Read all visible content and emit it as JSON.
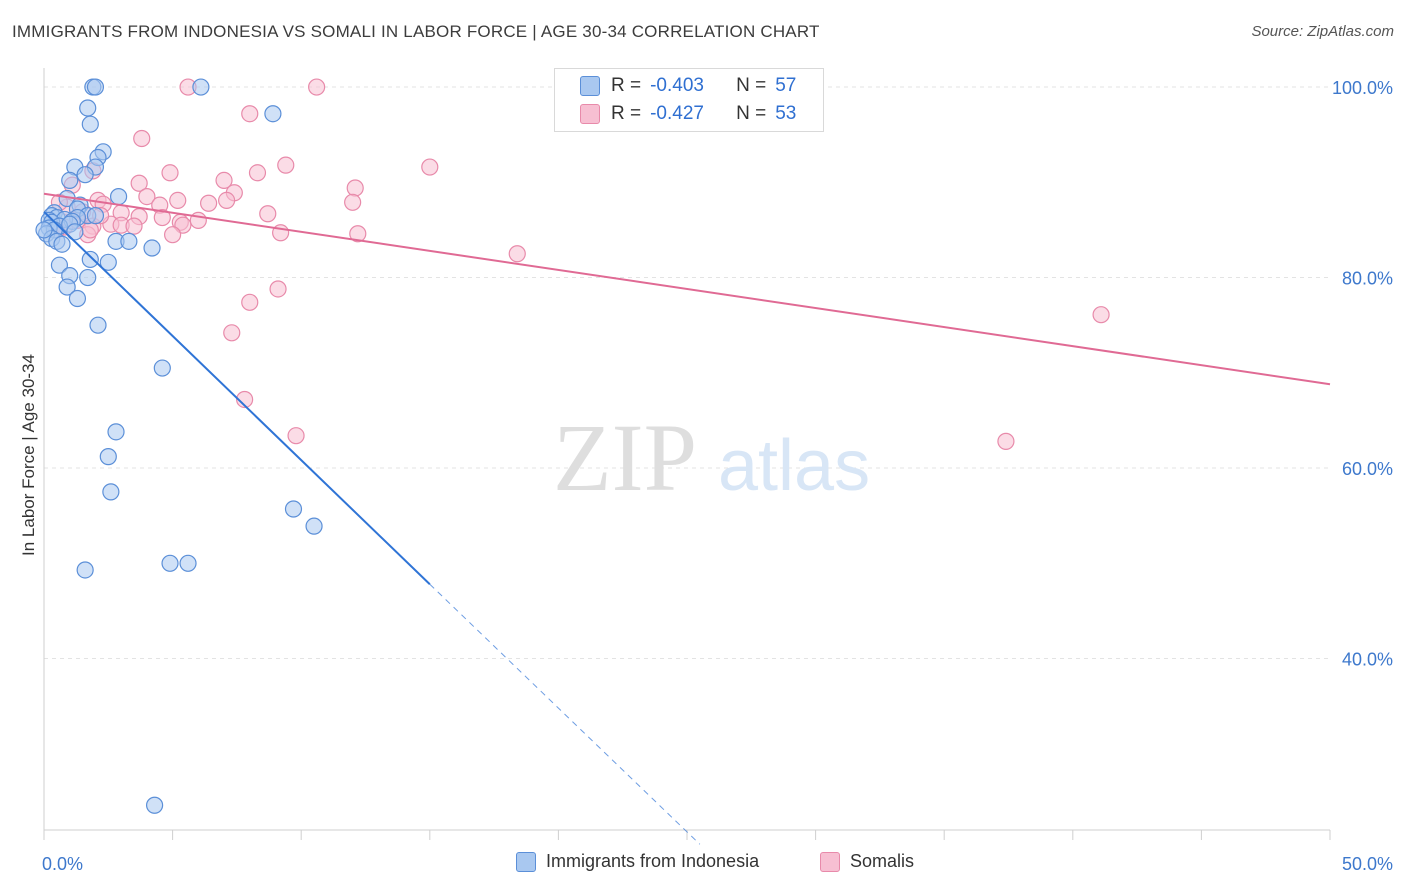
{
  "title": "IMMIGRANTS FROM INDONESIA VS SOMALI IN LABOR FORCE | AGE 30-34 CORRELATION CHART",
  "source": "Source: ZipAtlas.com",
  "watermark": {
    "zip": "ZIP",
    "atlas": "atlas"
  },
  "colors": {
    "indonesia_fill": "#a9c8f0",
    "indonesia_stroke": "#5b8fd8",
    "indonesia_line": "#2f74d6",
    "somali_fill": "#f7bfd2",
    "somali_stroke": "#e88aaa",
    "somali_line": "#e06a94",
    "tick_label": "#3d78cc",
    "grid": "#e3e3e3"
  },
  "stats": [
    {
      "r_label": "R =",
      "r_value": "-0.403",
      "n_label": "N =",
      "n_value": "57"
    },
    {
      "r_label": "R =",
      "r_value": "-0.427",
      "n_label": "N =",
      "n_value": "53"
    }
  ],
  "legend": [
    {
      "label": "Immigrants from Indonesia"
    },
    {
      "label": "Somalis"
    }
  ],
  "chart_data": {
    "type": "scatter",
    "title": "IMMIGRANTS FROM INDONESIA VS SOMALI IN LABOR FORCE | AGE 30-34 CORRELATION CHART",
    "xlabel": "",
    "ylabel": "In Labor Force | Age 30-34",
    "xlim": [
      0,
      50
    ],
    "ylim": [
      22,
      102
    ],
    "x_tick_labels": [
      {
        "value": 0,
        "label": "0.0%"
      },
      {
        "value": 50,
        "label": "50.0%"
      }
    ],
    "y_tick_labels": [
      {
        "value": 100,
        "label": "100.0%"
      },
      {
        "value": 80,
        "label": "80.0%"
      },
      {
        "value": 60,
        "label": "60.0%"
      },
      {
        "value": 40,
        "label": "40.0%"
      }
    ],
    "series": [
      {
        "name": "Immigrants from Indonesia",
        "points": [
          [
            1.9,
            100
          ],
          [
            2.0,
            100
          ],
          [
            6.1,
            100
          ],
          [
            1.7,
            97.8
          ],
          [
            8.9,
            97.2
          ],
          [
            1.8,
            96.1
          ],
          [
            2.3,
            93.2
          ],
          [
            2.1,
            92.6
          ],
          [
            2.0,
            91.6
          ],
          [
            1.2,
            91.6
          ],
          [
            1.6,
            90.8
          ],
          [
            1.0,
            90.2
          ],
          [
            2.9,
            88.5
          ],
          [
            0.9,
            88.3
          ],
          [
            1.4,
            87.6
          ],
          [
            1.3,
            87.2
          ],
          [
            0.4,
            86.8
          ],
          [
            0.3,
            86.5
          ],
          [
            0.5,
            86.3
          ],
          [
            1.7,
            86.5
          ],
          [
            1.3,
            86.3
          ],
          [
            2.0,
            86.5
          ],
          [
            0.8,
            86.1
          ],
          [
            1.1,
            85.9
          ],
          [
            0.2,
            86.0
          ],
          [
            0.3,
            85.8
          ],
          [
            0.6,
            85.4
          ],
          [
            1.0,
            85.6
          ],
          [
            0.2,
            85.2
          ],
          [
            0.4,
            85.0
          ],
          [
            1.2,
            84.8
          ],
          [
            0.1,
            84.6
          ],
          [
            0.3,
            84.1
          ],
          [
            0.5,
            83.8
          ],
          [
            0.7,
            83.5
          ],
          [
            2.8,
            83.8
          ],
          [
            3.3,
            83.8
          ],
          [
            4.2,
            83.1
          ],
          [
            1.8,
            81.9
          ],
          [
            2.5,
            81.6
          ],
          [
            0.6,
            81.3
          ],
          [
            1.0,
            80.2
          ],
          [
            1.7,
            80.0
          ],
          [
            0.9,
            79.0
          ],
          [
            1.3,
            77.8
          ],
          [
            2.1,
            75.0
          ],
          [
            4.6,
            70.5
          ],
          [
            2.8,
            63.8
          ],
          [
            2.5,
            61.2
          ],
          [
            2.6,
            57.5
          ],
          [
            9.7,
            55.7
          ],
          [
            10.5,
            53.9
          ],
          [
            4.9,
            50.0
          ],
          [
            5.6,
            50.0
          ],
          [
            1.6,
            49.3
          ],
          [
            4.3,
            24.6
          ],
          [
            0.0,
            85.0
          ]
        ]
      },
      {
        "name": "Somalis",
        "points": [
          [
            5.6,
            100
          ],
          [
            10.6,
            100
          ],
          [
            8.0,
            97.2
          ],
          [
            3.8,
            94.6
          ],
          [
            9.4,
            91.8
          ],
          [
            1.9,
            91.2
          ],
          [
            4.9,
            91.0
          ],
          [
            15.0,
            91.6
          ],
          [
            7.0,
            90.2
          ],
          [
            8.3,
            91.0
          ],
          [
            3.7,
            89.9
          ],
          [
            12.1,
            89.4
          ],
          [
            1.1,
            89.7
          ],
          [
            7.4,
            88.9
          ],
          [
            4.0,
            88.5
          ],
          [
            5.2,
            88.1
          ],
          [
            7.1,
            88.1
          ],
          [
            2.1,
            88.1
          ],
          [
            12.0,
            87.9
          ],
          [
            6.4,
            87.8
          ],
          [
            4.5,
            87.6
          ],
          [
            0.9,
            87.4
          ],
          [
            2.3,
            87.7
          ],
          [
            1.5,
            86.9
          ],
          [
            3.0,
            86.8
          ],
          [
            3.7,
            86.4
          ],
          [
            8.7,
            86.7
          ],
          [
            4.6,
            86.3
          ],
          [
            6.0,
            86.0
          ],
          [
            5.3,
            85.8
          ],
          [
            2.6,
            85.6
          ],
          [
            1.9,
            85.4
          ],
          [
            3.0,
            85.5
          ],
          [
            3.5,
            85.4
          ],
          [
            5.4,
            85.5
          ],
          [
            0.8,
            85.3
          ],
          [
            0.5,
            85.0
          ],
          [
            5.0,
            84.5
          ],
          [
            9.2,
            84.7
          ],
          [
            12.2,
            84.6
          ],
          [
            1.7,
            84.5
          ],
          [
            18.4,
            82.5
          ],
          [
            9.1,
            78.8
          ],
          [
            8.0,
            77.4
          ],
          [
            7.3,
            74.2
          ],
          [
            41.1,
            76.1
          ],
          [
            7.8,
            67.2
          ],
          [
            9.8,
            63.4
          ],
          [
            37.4,
            62.8
          ],
          [
            2.2,
            86.5
          ],
          [
            1.3,
            86.0
          ],
          [
            0.6,
            87.9
          ],
          [
            1.8,
            85.0
          ]
        ]
      }
    ],
    "trend_lines": [
      {
        "series": "Immigrants from Indonesia",
        "solid": {
          "x": [
            0.0,
            15.0
          ],
          "y": [
            86.9,
            47.8
          ]
        },
        "dashed": {
          "x": [
            15.0,
            25.5
          ],
          "y": [
            47.8,
            20.5
          ]
        }
      },
      {
        "series": "Somalis",
        "solid": {
          "x": [
            0.0,
            50.0
          ],
          "y": [
            88.8,
            68.8
          ]
        }
      }
    ]
  }
}
